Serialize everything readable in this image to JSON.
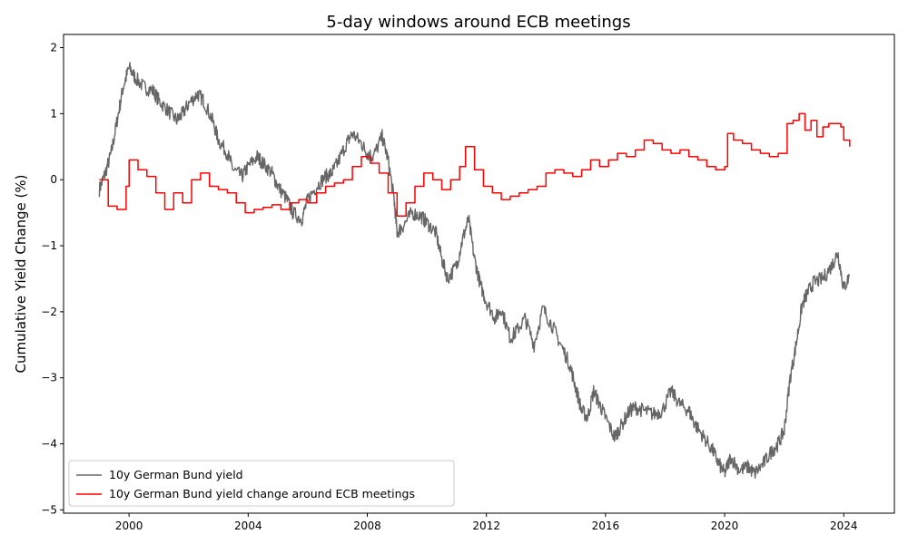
{
  "chart_data": {
    "type": "line",
    "title": "5-day windows around ECB meetings",
    "xlabel": "",
    "ylabel": "Cumulative Yield Change (%)",
    "xlim": [
      1997.8,
      2025.7
    ],
    "ylim": [
      -5.05,
      2.2
    ],
    "x_ticks": [
      2000,
      2004,
      2008,
      2012,
      2016,
      2020,
      2024
    ],
    "x_tick_labels": [
      "2000",
      "2004",
      "2008",
      "2012",
      "2016",
      "2020",
      "2024"
    ],
    "y_ticks": [
      2,
      1,
      0,
      -1,
      -2,
      -3,
      -4,
      -5
    ],
    "y_tick_labels": [
      "2",
      "1",
      "0",
      "−1",
      "−2",
      "−3",
      "−4",
      "−5"
    ],
    "grid": false,
    "legend_position": "lower-left",
    "series": [
      {
        "name": "10y German Bund yield",
        "color": "#666666",
        "style": "noisy",
        "x": [
          1999.0,
          1999.2,
          1999.4,
          1999.6,
          1999.8,
          2000.0,
          2000.2,
          2000.5,
          2000.8,
          2001.0,
          2001.3,
          2001.6,
          2001.8,
          2002.0,
          2002.3,
          2002.5,
          2002.8,
          2003.0,
          2003.3,
          2003.5,
          2003.8,
          2004.0,
          2004.3,
          2004.5,
          2004.8,
          2005.0,
          2005.3,
          2005.5,
          2005.8,
          2006.0,
          2006.3,
          2006.6,
          2006.8,
          2007.0,
          2007.3,
          2007.5,
          2007.8,
          2008.0,
          2008.2,
          2008.5,
          2008.7,
          2008.9,
          2009.0,
          2009.2,
          2009.5,
          2009.8,
          2010.0,
          2010.3,
          2010.5,
          2010.7,
          2011.0,
          2011.2,
          2011.4,
          2011.6,
          2011.8,
          2012.0,
          2012.3,
          2012.5,
          2012.8,
          2013.0,
          2013.3,
          2013.6,
          2013.9,
          2014.2,
          2014.5,
          2014.8,
          2015.0,
          2015.2,
          2015.4,
          2015.6,
          2015.8,
          2016.0,
          2016.3,
          2016.5,
          2016.8,
          2017.0,
          2017.3,
          2017.6,
          2017.9,
          2018.2,
          2018.5,
          2018.8,
          2019.0,
          2019.3,
          2019.6,
          2019.8,
          2020.0,
          2020.2,
          2020.5,
          2020.8,
          2021.0,
          2021.3,
          2021.6,
          2021.8,
          2022.0,
          2022.2,
          2022.4,
          2022.6,
          2022.8,
          2023.0,
          2023.3,
          2023.6,
          2023.8,
          2024.0,
          2024.2
        ],
        "y": [
          -0.15,
          0.1,
          0.4,
          0.9,
          1.4,
          1.7,
          1.55,
          1.4,
          1.35,
          1.2,
          1.05,
          0.9,
          1.0,
          1.15,
          1.3,
          1.2,
          0.9,
          0.6,
          0.4,
          0.15,
          0.05,
          0.2,
          0.35,
          0.25,
          0.1,
          -0.1,
          -0.3,
          -0.5,
          -0.6,
          -0.3,
          -0.1,
          0.05,
          0.1,
          0.25,
          0.55,
          0.7,
          0.55,
          0.4,
          0.35,
          0.65,
          0.3,
          -0.3,
          -0.8,
          -0.7,
          -0.5,
          -0.55,
          -0.65,
          -0.8,
          -1.2,
          -1.5,
          -1.3,
          -0.9,
          -0.6,
          -1.2,
          -1.6,
          -1.85,
          -2.1,
          -1.95,
          -2.4,
          -2.3,
          -2.1,
          -2.5,
          -1.95,
          -2.2,
          -2.5,
          -2.8,
          -3.15,
          -3.5,
          -3.6,
          -3.2,
          -3.4,
          -3.6,
          -3.9,
          -3.75,
          -3.5,
          -3.45,
          -3.5,
          -3.55,
          -3.5,
          -3.2,
          -3.4,
          -3.5,
          -3.7,
          -3.9,
          -4.1,
          -4.3,
          -4.45,
          -4.2,
          -4.4,
          -4.35,
          -4.45,
          -4.3,
          -4.1,
          -4.0,
          -3.8,
          -3.0,
          -2.5,
          -1.9,
          -1.7,
          -1.55,
          -1.5,
          -1.3,
          -1.1,
          -1.65,
          -1.45
        ]
      },
      {
        "name": "10y German Bund yield change around ECB meetings",
        "color": "#ff0000",
        "style": "step",
        "x": [
          1999.0,
          1999.3,
          1999.6,
          1999.9,
          2000.0,
          2000.3,
          2000.6,
          2000.9,
          2001.2,
          2001.5,
          2001.8,
          2002.1,
          2002.4,
          2002.7,
          2003.0,
          2003.3,
          2003.6,
          2003.9,
          2004.2,
          2004.5,
          2004.8,
          2005.1,
          2005.4,
          2005.7,
          2006.0,
          2006.3,
          2006.6,
          2006.9,
          2007.2,
          2007.5,
          2007.8,
          2008.1,
          2008.4,
          2008.7,
          2009.0,
          2009.3,
          2009.6,
          2009.9,
          2010.2,
          2010.5,
          2010.8,
          2011.1,
          2011.3,
          2011.6,
          2011.9,
          2012.2,
          2012.5,
          2012.8,
          2013.1,
          2013.4,
          2013.7,
          2014.0,
          2014.3,
          2014.6,
          2014.9,
          2015.2,
          2015.5,
          2015.8,
          2016.1,
          2016.4,
          2016.7,
          2017.0,
          2017.3,
          2017.6,
          2017.9,
          2018.2,
          2018.5,
          2018.8,
          2019.1,
          2019.4,
          2019.7,
          2020.0,
          2020.1,
          2020.3,
          2020.6,
          2020.9,
          2021.2,
          2021.5,
          2021.8,
          2022.1,
          2022.3,
          2022.5,
          2022.7,
          2022.9,
          2023.1,
          2023.3,
          2023.5,
          2023.7,
          2023.9,
          2024.0,
          2024.2
        ],
        "y": [
          0.0,
          -0.4,
          -0.45,
          -0.1,
          0.3,
          0.15,
          0.05,
          -0.2,
          -0.45,
          -0.2,
          -0.35,
          0.0,
          0.1,
          -0.1,
          -0.15,
          -0.2,
          -0.35,
          -0.5,
          -0.45,
          -0.42,
          -0.38,
          -0.45,
          -0.35,
          -0.3,
          -0.35,
          -0.2,
          -0.1,
          -0.05,
          0.0,
          0.2,
          0.35,
          0.25,
          0.1,
          -0.2,
          -0.55,
          -0.35,
          -0.1,
          0.1,
          0.0,
          -0.15,
          0.0,
          0.2,
          0.5,
          0.15,
          -0.1,
          -0.2,
          -0.3,
          -0.25,
          -0.2,
          -0.15,
          -0.1,
          0.1,
          0.15,
          0.1,
          0.05,
          0.15,
          0.3,
          0.2,
          0.3,
          0.4,
          0.35,
          0.45,
          0.6,
          0.55,
          0.45,
          0.4,
          0.45,
          0.35,
          0.3,
          0.2,
          0.15,
          0.2,
          0.7,
          0.6,
          0.55,
          0.45,
          0.4,
          0.35,
          0.4,
          0.85,
          0.9,
          1.0,
          0.75,
          0.9,
          0.65,
          0.8,
          0.85,
          0.85,
          0.8,
          0.6,
          0.5
        ]
      }
    ]
  }
}
